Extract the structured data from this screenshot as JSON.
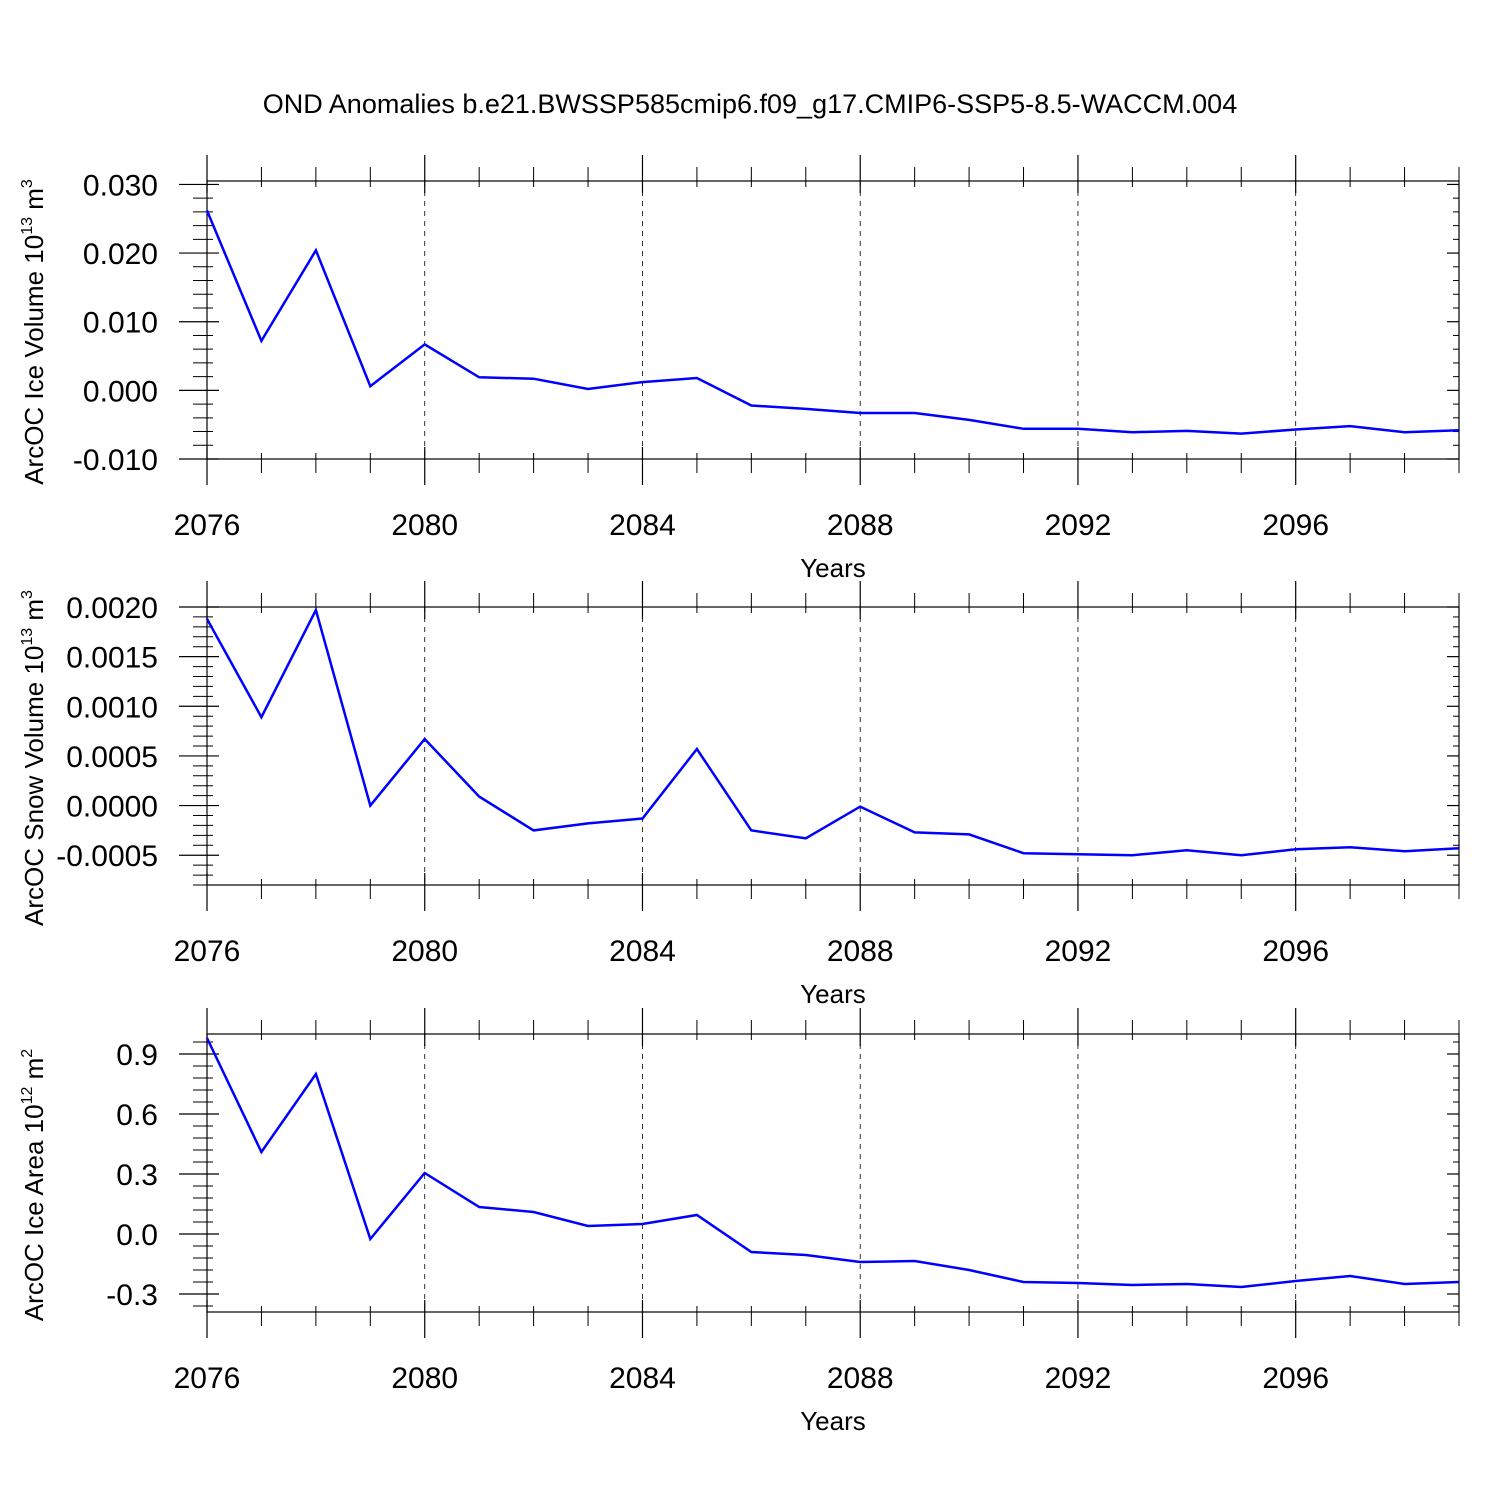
{
  "title": "OND Anomalies b.e21.BWSSP585cmip6.f09_g17.CMIP6-SSP5-8.5-WACCM.004",
  "colors": {
    "line": "#0000ff",
    "axes": "#000000",
    "grid": "#000000"
  },
  "chart_data": [
    {
      "type": "line",
      "ylabel": {
        "pre": "ArcOC Ice Volume 10",
        "exp": "13",
        "post": " m",
        "unit_exp": "3"
      },
      "xlabel": "Years",
      "xlim": [
        2076,
        2099
      ],
      "ylim": [
        -0.01,
        0.0305
      ],
      "xticks": [
        2076,
        2080,
        2084,
        2088,
        2092,
        2096
      ],
      "yticks": [
        -0.01,
        0.0,
        0.01,
        0.02,
        0.03
      ],
      "ytick_labels": [
        "-0.010",
        "0.000",
        "0.010",
        "0.020",
        "0.030"
      ],
      "x": [
        2076,
        2077,
        2078,
        2079,
        2080,
        2081,
        2082,
        2083,
        2084,
        2085,
        2086,
        2087,
        2088,
        2089,
        2090,
        2091,
        2092,
        2093,
        2094,
        2095,
        2096,
        2097,
        2098,
        2099
      ],
      "values": [
        0.0262,
        0.0072,
        0.0204,
        0.0006,
        0.0067,
        0.0019,
        0.0017,
        0.0002,
        0.0012,
        0.0018,
        -0.0022,
        -0.0027,
        -0.0033,
        -0.0033,
        -0.0043,
        -0.0056,
        -0.0056,
        -0.0061,
        -0.0059,
        -0.0063,
        -0.0057,
        -0.0052,
        -0.0061,
        -0.0058
      ]
    },
    {
      "type": "line",
      "ylabel": {
        "pre": "ArcOC Snow Volume 10",
        "exp": "13",
        "post": " m",
        "unit_exp": "3"
      },
      "xlabel": "Years",
      "xlim": [
        2076,
        2099
      ],
      "ylim": [
        -0.0008,
        0.002
      ],
      "xticks": [
        2076,
        2080,
        2084,
        2088,
        2092,
        2096
      ],
      "yticks": [
        -0.0005,
        0.0,
        0.0005,
        0.001,
        0.0015,
        0.002
      ],
      "ytick_labels": [
        "-0.0005",
        "0.0000",
        "0.0005",
        "0.0010",
        "0.0015",
        "0.0020"
      ],
      "x": [
        2076,
        2077,
        2078,
        2079,
        2080,
        2081,
        2082,
        2083,
        2084,
        2085,
        2086,
        2087,
        2088,
        2089,
        2090,
        2091,
        2092,
        2093,
        2094,
        2095,
        2096,
        2097,
        2098,
        2099
      ],
      "values": [
        0.00188,
        0.00089,
        0.00197,
        0.0,
        0.00067,
        9e-05,
        -0.00025,
        -0.00018,
        -0.00013,
        0.00057,
        -0.00025,
        -0.00033,
        -1e-05,
        -0.00027,
        -0.00029,
        -0.00048,
        -0.00049,
        -0.0005,
        -0.00045,
        -0.0005,
        -0.00044,
        -0.00042,
        -0.00046,
        -0.00043
      ]
    },
    {
      "type": "line",
      "ylabel": {
        "pre": "ArcOC Ice Area 10",
        "exp": "12",
        "post": " m",
        "unit_exp": "2"
      },
      "xlabel": "Years",
      "xlim": [
        2076,
        2099
      ],
      "ylim": [
        -0.39,
        1.0
      ],
      "xticks": [
        2076,
        2080,
        2084,
        2088,
        2092,
        2096
      ],
      "yticks": [
        -0.3,
        0.0,
        0.3,
        0.6,
        0.9
      ],
      "ytick_labels": [
        "-0.3",
        "0.0",
        "0.3",
        "0.6",
        "0.9"
      ],
      "x": [
        2076,
        2077,
        2078,
        2079,
        2080,
        2081,
        2082,
        2083,
        2084,
        2085,
        2086,
        2087,
        2088,
        2089,
        2090,
        2091,
        2092,
        2093,
        2094,
        2095,
        2096,
        2097,
        2098,
        2099
      ],
      "values": [
        0.98,
        0.41,
        0.8,
        -0.025,
        0.305,
        0.135,
        0.11,
        0.04,
        0.05,
        0.095,
        -0.09,
        -0.105,
        -0.14,
        -0.135,
        -0.18,
        -0.24,
        -0.245,
        -0.255,
        -0.25,
        -0.265,
        -0.235,
        -0.21,
        -0.25,
        -0.24
      ]
    }
  ]
}
